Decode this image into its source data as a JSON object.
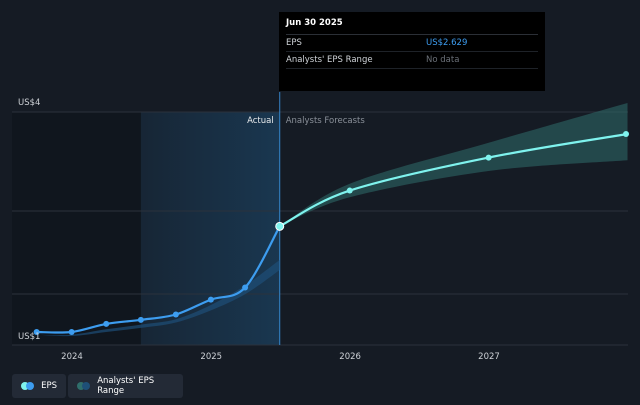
{
  "colors": {
    "background": "#151b24",
    "eps_line": "#3d9df0",
    "forecast_line": "#7ff3ee",
    "range_band": "#2f6e6b",
    "actual_shade": "#1a3a55",
    "grid": "#2b323c",
    "text": "#cfd3d8"
  },
  "tooltip": {
    "date": "Jun 30 2025",
    "eps_label": "EPS",
    "eps_value": "US$2.629",
    "range_label": "Analysts' EPS Range",
    "range_value": "No data"
  },
  "legend": {
    "eps_label": "EPS",
    "range_label": "Analysts' EPS Range"
  },
  "chart_data": {
    "type": "line",
    "ylim": [
      1,
      4
    ],
    "y_tick_labels": [
      "US$4",
      "US$1"
    ],
    "x_tick_labels": [
      "2024",
      "2025",
      "2026",
      "2027"
    ],
    "divider_labels": {
      "actual": "Actual",
      "forecast": "Analysts Forecasts"
    },
    "divider_date": "2025-06-30",
    "highlight_start": "2024-06-30",
    "series": [
      {
        "name": "EPS",
        "points": [
          [
            "2023-09-30",
            1.06
          ],
          [
            "2023-12-31",
            1.06
          ],
          [
            "2024-03-31",
            1.18
          ],
          [
            "2024-06-30",
            1.24
          ],
          [
            "2024-09-30",
            1.32
          ],
          [
            "2024-12-31",
            1.54
          ],
          [
            "2025-03-31",
            1.72
          ],
          [
            "2025-06-30",
            2.629
          ]
        ]
      },
      {
        "name": "Analysts Forecasts",
        "points": [
          [
            "2025-06-30",
            2.629
          ],
          [
            "2025-12-31",
            3.16
          ],
          [
            "2026-12-31",
            3.65
          ],
          [
            "2027-12-31",
            4.0
          ]
        ],
        "range": [
          [
            "2025-06-30",
            2.629,
            2.629
          ],
          [
            "2025-12-31",
            3.06,
            3.26
          ],
          [
            "2026-12-31",
            3.45,
            3.87
          ],
          [
            "2027-12-31",
            3.61,
            4.46
          ]
        ]
      }
    ],
    "past_estimate_range": [
      [
        "2023-09-30",
        1.02,
        1.02
      ],
      [
        "2023-12-31",
        1.0,
        1.02
      ],
      [
        "2024-03-31",
        1.06,
        1.1
      ],
      [
        "2024-06-30",
        1.12,
        1.17
      ],
      [
        "2024-09-30",
        1.2,
        1.25
      ],
      [
        "2024-12-31",
        1.38,
        1.46
      ],
      [
        "2025-03-31",
        1.62,
        1.75
      ],
      [
        "2025-06-30",
        1.98,
        2.13
      ]
    ]
  }
}
